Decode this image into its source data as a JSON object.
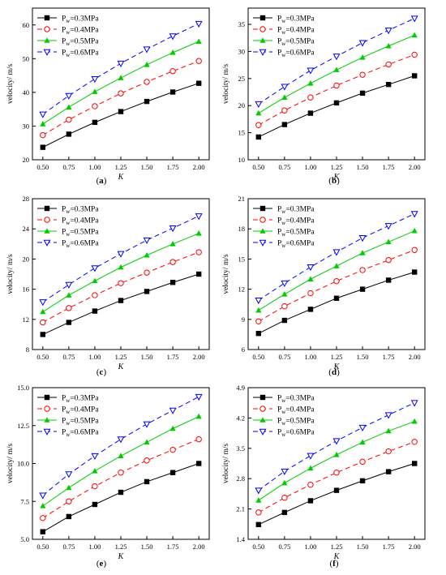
{
  "figure": {
    "colors": {
      "s03": "#000000",
      "s04": "#ff0000",
      "s05": "#00cc00",
      "s06": "#0000ff"
    },
    "x_ticks": [
      "0.50",
      "0.75",
      "1.00",
      "1.25",
      "1.50",
      "1.75",
      "2.00"
    ]
  },
  "chart_data": [
    {
      "type": "line",
      "panel_label": "(a)",
      "xlabel": "K",
      "ylabel": "velocity/ m/s",
      "xlim": [
        0.4,
        2.1
      ],
      "ylim": [
        20,
        65
      ],
      "yticks": [
        "20",
        "30",
        "40",
        "50",
        "60"
      ],
      "ytick_values": [
        20,
        30,
        40,
        50,
        60
      ],
      "legend": "top-left",
      "x": [
        0.5,
        0.75,
        1.0,
        1.25,
        1.5,
        1.75,
        2.0
      ],
      "series": [
        {
          "name": "Pw=0.3MPa",
          "values": [
            23.7,
            27.6,
            31.1,
            34.3,
            37.3,
            40.1,
            42.7
          ]
        },
        {
          "name": "Pw=0.4MPa",
          "values": [
            27.3,
            31.9,
            35.9,
            39.7,
            43.1,
            46.3,
            49.3
          ]
        },
        {
          "name": "Pw=0.5MPa",
          "values": [
            30.6,
            35.6,
            40.2,
            44.3,
            48.2,
            51.8,
            55.1
          ]
        },
        {
          "name": "Pw=0.6MPa",
          "values": [
            33.5,
            39.0,
            44.0,
            48.6,
            52.8,
            56.7,
            60.4
          ]
        }
      ]
    },
    {
      "type": "line",
      "panel_label": "(b)",
      "xlabel": "K",
      "ylabel": "velocity/ m/s",
      "xlim": [
        0.4,
        2.1
      ],
      "ylim": [
        10,
        38
      ],
      "yticks": [
        "10",
        "15",
        "20",
        "25",
        "30",
        "35"
      ],
      "ytick_values": [
        10,
        15,
        20,
        25,
        30,
        35
      ],
      "legend": "top-left",
      "x": [
        0.5,
        0.75,
        1.0,
        1.25,
        1.5,
        1.75,
        2.0
      ],
      "series": [
        {
          "name": "Pw=0.3MPa",
          "values": [
            14.2,
            16.5,
            18.6,
            20.5,
            22.3,
            23.9,
            25.5
          ]
        },
        {
          "name": "Pw=0.4MPa",
          "values": [
            16.4,
            19.1,
            21.5,
            23.7,
            25.7,
            27.6,
            29.4
          ]
        },
        {
          "name": "Pw=0.5MPa",
          "values": [
            18.6,
            21.5,
            24.1,
            26.6,
            28.9,
            31.0,
            33.0
          ]
        },
        {
          "name": "Pw=0.6MPa",
          "values": [
            20.3,
            23.5,
            26.5,
            29.1,
            31.6,
            33.9,
            36.1
          ]
        }
      ]
    },
    {
      "type": "line",
      "panel_label": "(c)",
      "xlabel": "K",
      "ylabel": "velocity/ m/s",
      "xlim": [
        0.4,
        2.1
      ],
      "ylim": [
        8,
        28
      ],
      "yticks": [
        "8",
        "12",
        "16",
        "20",
        "24",
        "28"
      ],
      "ytick_values": [
        8,
        12,
        16,
        20,
        24,
        28
      ],
      "legend": "top-left",
      "x": [
        0.5,
        0.75,
        1.0,
        1.25,
        1.5,
        1.75,
        2.0
      ],
      "series": [
        {
          "name": "Pw=0.3MPa",
          "values": [
            10.0,
            11.6,
            13.1,
            14.5,
            15.7,
            16.9,
            18.0
          ]
        },
        {
          "name": "Pw=0.4MPa",
          "values": [
            11.6,
            13.5,
            15.2,
            16.8,
            18.2,
            19.6,
            20.9
          ]
        },
        {
          "name": "Pw=0.5MPa",
          "values": [
            13.0,
            15.2,
            17.1,
            18.9,
            20.5,
            22.0,
            23.4
          ]
        },
        {
          "name": "Pw=0.6MPa",
          "values": [
            14.3,
            16.6,
            18.8,
            20.7,
            22.5,
            24.1,
            25.7
          ]
        }
      ]
    },
    {
      "type": "line",
      "panel_label": "(d)",
      "xlabel": "K",
      "ylabel": "velocity/ m/s",
      "xlim": [
        0.4,
        2.1
      ],
      "ylim": [
        6,
        21
      ],
      "yticks": [
        "6",
        "9",
        "12",
        "15",
        "18",
        "21"
      ],
      "ytick_values": [
        6,
        9,
        12,
        15,
        18,
        21
      ],
      "legend": "top-left",
      "x": [
        0.5,
        0.75,
        1.0,
        1.25,
        1.5,
        1.75,
        2.0
      ],
      "series": [
        {
          "name": "Pw=0.3MPa",
          "values": [
            7.6,
            8.9,
            10.0,
            11.1,
            12.0,
            12.9,
            13.7
          ]
        },
        {
          "name": "Pw=0.4MPa",
          "values": [
            8.8,
            10.3,
            11.6,
            12.8,
            13.9,
            14.9,
            15.9
          ]
        },
        {
          "name": "Pw=0.5MPa",
          "values": [
            9.9,
            11.5,
            13.0,
            14.3,
            15.6,
            16.7,
            17.8
          ]
        },
        {
          "name": "Pw=0.6MPa",
          "values": [
            10.9,
            12.6,
            14.2,
            15.7,
            17.1,
            18.3,
            19.5
          ]
        }
      ]
    },
    {
      "type": "line",
      "panel_label": "(e)",
      "xlabel": "K",
      "ylabel": "velocity/ m/s",
      "xlim": [
        0.4,
        2.1
      ],
      "ylim": [
        5.0,
        15.0
      ],
      "yticks": [
        "5.0",
        "7.5",
        "10.0",
        "12.5",
        "15.0"
      ],
      "ytick_values": [
        5,
        7.5,
        10,
        12.5,
        15
      ],
      "legend": "top-left",
      "x": [
        0.5,
        0.75,
        1.0,
        1.25,
        1.5,
        1.75,
        2.0
      ],
      "series": [
        {
          "name": "Pw=0.3MPa",
          "values": [
            5.5,
            6.5,
            7.3,
            8.1,
            8.8,
            9.4,
            10.0
          ]
        },
        {
          "name": "Pw=0.4MPa",
          "values": [
            6.4,
            7.5,
            8.5,
            9.4,
            10.2,
            10.9,
            11.6
          ]
        },
        {
          "name": "Pw=0.5MPa",
          "values": [
            7.2,
            8.4,
            9.5,
            10.5,
            11.4,
            12.3,
            13.1
          ]
        },
        {
          "name": "Pw=0.6MPa",
          "values": [
            7.9,
            9.3,
            10.5,
            11.6,
            12.6,
            13.5,
            14.4
          ]
        }
      ]
    },
    {
      "type": "line",
      "panel_label": "(f)",
      "xlabel": "K",
      "ylabel": "velocity/ m/s",
      "xlim": [
        0.4,
        2.1
      ],
      "ylim": [
        1.4,
        4.9
      ],
      "yticks": [
        "1.4",
        "2.1",
        "2.8",
        "3.5",
        "4.2",
        "4.9"
      ],
      "ytick_values": [
        1.4,
        2.1,
        2.8,
        3.5,
        4.2,
        4.9
      ],
      "legend": "top-left",
      "x": [
        0.5,
        0.75,
        1.0,
        1.25,
        1.5,
        1.75,
        2.0
      ],
      "series": [
        {
          "name": "Pw=0.3MPa",
          "values": [
            1.74,
            2.02,
            2.29,
            2.53,
            2.75,
            2.96,
            3.15
          ]
        },
        {
          "name": "Pw=0.4MPa",
          "values": [
            2.02,
            2.36,
            2.66,
            2.94,
            3.19,
            3.43,
            3.65
          ]
        },
        {
          "name": "Pw=0.5MPa",
          "values": [
            2.3,
            2.7,
            3.04,
            3.35,
            3.64,
            3.9,
            4.12
          ]
        },
        {
          "name": "Pw=0.6MPa",
          "values": [
            2.53,
            2.97,
            3.33,
            3.67,
            3.98,
            4.27,
            4.55
          ]
        }
      ]
    }
  ]
}
